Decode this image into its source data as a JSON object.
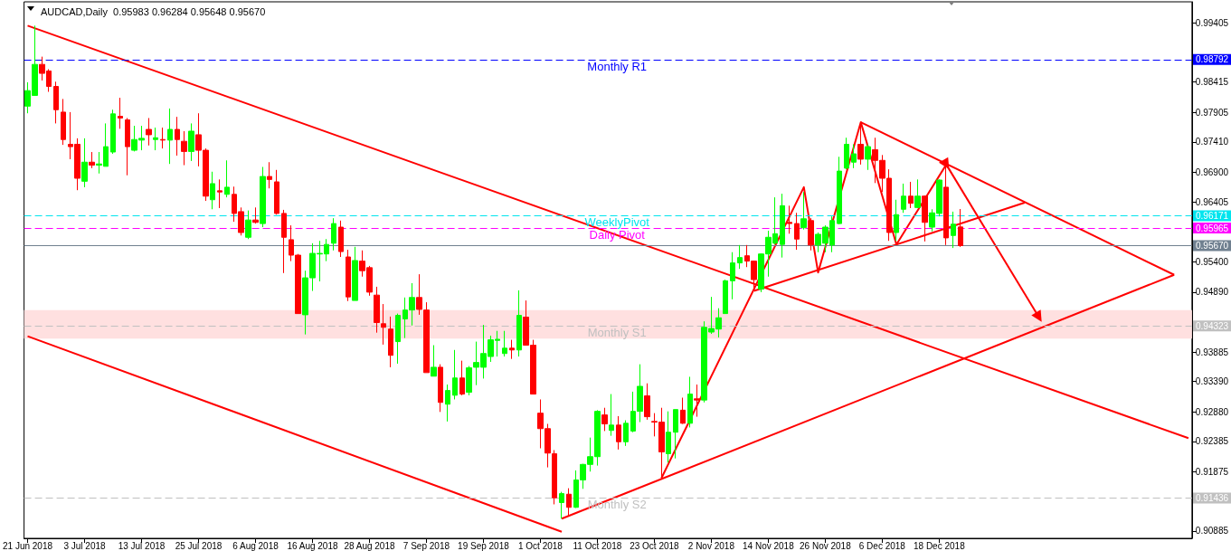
{
  "chart_data": {
    "type": "candlestick",
    "title": "AUDCAD,Daily  0.95983 0.96284 0.95648 0.95670",
    "categories": [
      "21 Jun 2018",
      null,
      null,
      null,
      null,
      null,
      null,
      null,
      "3 Jul 2018",
      null,
      null,
      null,
      null,
      null,
      null,
      null,
      "13 Jul 2018",
      null,
      null,
      null,
      null,
      null,
      null,
      null,
      "25 Jul 2018",
      null,
      null,
      null,
      null,
      null,
      null,
      null,
      "6 Aug 2018",
      null,
      null,
      null,
      null,
      null,
      null,
      null,
      "16 Aug 2018",
      null,
      null,
      null,
      null,
      null,
      null,
      null,
      "28 Aug 2018",
      null,
      null,
      null,
      null,
      null,
      null,
      null,
      "7 Sep 2018",
      null,
      null,
      null,
      null,
      null,
      null,
      null,
      "19 Sep 2018",
      null,
      null,
      null,
      null,
      null,
      null,
      null,
      "1 Oct 2018",
      null,
      null,
      null,
      null,
      null,
      null,
      null,
      "11 Oct 2018",
      null,
      null,
      null,
      null,
      null,
      null,
      null,
      "23 Oct 2018",
      null,
      null,
      null,
      null,
      null,
      null,
      null,
      "2 Nov 2018",
      null,
      null,
      null,
      null,
      null,
      null,
      null,
      "14 Nov 2018",
      null,
      null,
      null,
      null,
      null,
      null,
      null,
      "26 Nov 2018",
      null,
      null,
      null,
      null,
      null,
      null,
      null,
      "6 Dec 2018",
      null,
      null,
      null,
      null,
      null,
      null,
      null,
      "18 Dec 2018",
      null,
      null,
      null,
      null,
      null,
      null,
      null,
      null,
      null,
      null,
      null,
      null,
      null,
      null,
      null,
      null,
      null,
      null,
      null,
      null,
      null,
      null,
      null,
      null,
      null,
      null,
      null,
      null,
      null,
      null,
      null,
      null,
      null,
      null,
      null
    ],
    "ohlc": [
      [
        0.9801,
        0.9841,
        0.9789,
        0.9827
      ],
      [
        0.9819,
        0.9936,
        0.9819,
        0.9871
      ],
      [
        0.9871,
        0.9884,
        0.9844,
        0.9856
      ],
      [
        0.986,
        0.9863,
        0.9825,
        0.9834
      ],
      [
        0.9834,
        0.9842,
        0.9772,
        0.9795
      ],
      [
        0.9791,
        0.9813,
        0.9736,
        0.9745
      ],
      [
        0.9737,
        0.9791,
        0.9712,
        0.9733
      ],
      [
        0.9737,
        0.9747,
        0.966,
        0.968
      ],
      [
        0.9675,
        0.9747,
        0.9665,
        0.9707
      ],
      [
        0.9707,
        0.9724,
        0.9697,
        0.9702
      ],
      [
        0.9702,
        0.9724,
        0.9688,
        0.9704
      ],
      [
        0.97,
        0.9772,
        0.97,
        0.9733
      ],
      [
        0.9724,
        0.9795,
        0.9721,
        0.9788
      ],
      [
        0.9784,
        0.9815,
        0.9763,
        0.9781
      ],
      [
        0.9778,
        0.9781,
        0.9685,
        0.9733
      ],
      [
        0.9727,
        0.9768,
        0.9725,
        0.9745
      ],
      [
        0.9744,
        0.9768,
        0.9727,
        0.9747
      ],
      [
        0.9762,
        0.9781,
        0.9735,
        0.9753
      ],
      [
        0.9745,
        0.9765,
        0.9727,
        0.9748
      ],
      [
        0.9745,
        0.9765,
        0.973,
        0.9744
      ],
      [
        0.9744,
        0.9797,
        0.9704,
        0.9762
      ],
      [
        0.9762,
        0.9783,
        0.9718,
        0.9745
      ],
      [
        0.9742,
        0.9759,
        0.9702,
        0.9725
      ],
      [
        0.9725,
        0.9772,
        0.9709,
        0.9759
      ],
      [
        0.9753,
        0.9789,
        0.97,
        0.9727
      ],
      [
        0.9727,
        0.973,
        0.9642,
        0.965
      ],
      [
        0.9644,
        0.9691,
        0.9628,
        0.9671
      ],
      [
        0.9659,
        0.9678,
        0.963,
        0.9657
      ],
      [
        0.9653,
        0.971,
        0.9648,
        0.9665
      ],
      [
        0.9653,
        0.9666,
        0.9607,
        0.9621
      ],
      [
        0.9624,
        0.9631,
        0.9584,
        0.9589
      ],
      [
        0.9581,
        0.9626,
        0.9578,
        0.961
      ],
      [
        0.961,
        0.9631,
        0.9604,
        0.9606
      ],
      [
        0.9604,
        0.9699,
        0.9598,
        0.9683
      ],
      [
        0.9683,
        0.9707,
        0.9663,
        0.9678
      ],
      [
        0.9674,
        0.9694,
        0.9619,
        0.9621
      ],
      [
        0.9621,
        0.9627,
        0.9521,
        0.9581
      ],
      [
        0.9577,
        0.9601,
        0.9541,
        0.9551
      ],
      [
        0.9551,
        0.9553,
        0.9453,
        0.9453
      ],
      [
        0.9451,
        0.9525,
        0.9418,
        0.9513
      ],
      [
        0.9513,
        0.9571,
        0.9491,
        0.9554
      ],
      [
        0.9553,
        0.9575,
        0.9507,
        0.9554
      ],
      [
        0.9553,
        0.9578,
        0.9541,
        0.9569
      ],
      [
        0.9571,
        0.9613,
        0.9559,
        0.9604
      ],
      [
        0.9598,
        0.9609,
        0.9548,
        0.9557
      ],
      [
        0.9548,
        0.956,
        0.9474,
        0.9481
      ],
      [
        0.9475,
        0.9565,
        0.9475,
        0.9542
      ],
      [
        0.9541,
        0.9559,
        0.9515,
        0.9525
      ],
      [
        0.953,
        0.9533,
        0.9483,
        0.9489
      ],
      [
        0.9484,
        0.9498,
        0.9421,
        0.9438
      ],
      [
        0.9436,
        0.9469,
        0.9401,
        0.943
      ],
      [
        0.9427,
        0.9448,
        0.9363,
        0.9383
      ],
      [
        0.9406,
        0.9453,
        0.9369,
        0.945
      ],
      [
        0.9444,
        0.948,
        0.9412,
        0.9459
      ],
      [
        0.9459,
        0.9504,
        0.9433,
        0.948
      ],
      [
        0.948,
        0.9519,
        0.9451,
        0.946
      ],
      [
        0.9459,
        0.9472,
        0.9354,
        0.9354
      ],
      [
        0.9348,
        0.94,
        0.9348,
        0.9363
      ],
      [
        0.9363,
        0.9368,
        0.9288,
        0.9304
      ],
      [
        0.9301,
        0.9334,
        0.9272,
        0.9324
      ],
      [
        0.9316,
        0.9392,
        0.9309,
        0.9345
      ],
      [
        0.9345,
        0.9374,
        0.9316,
        0.9318
      ],
      [
        0.9321,
        0.9365,
        0.9316,
        0.9362
      ],
      [
        0.9363,
        0.9406,
        0.9333,
        0.9371
      ],
      [
        0.9363,
        0.9434,
        0.9344,
        0.9386
      ],
      [
        0.9381,
        0.9416,
        0.9372,
        0.9409
      ],
      [
        0.9408,
        0.9424,
        0.9381,
        0.941
      ],
      [
        0.9386,
        0.9424,
        0.9381,
        0.9395
      ],
      [
        0.9395,
        0.9409,
        0.9377,
        0.9392
      ],
      [
        0.9392,
        0.9492,
        0.9381,
        0.945
      ],
      [
        0.9447,
        0.9475,
        0.94,
        0.94
      ],
      [
        0.94,
        0.9409,
        0.9318,
        0.9318
      ],
      [
        0.9286,
        0.9309,
        0.9227,
        0.926
      ],
      [
        0.926,
        0.9268,
        0.9195,
        0.9219
      ],
      [
        0.9218,
        0.9224,
        0.9133,
        0.9144
      ],
      [
        0.9136,
        0.9154,
        0.9109,
        0.9151
      ],
      [
        0.915,
        0.916,
        0.9113,
        0.9128
      ],
      [
        0.9128,
        0.919,
        0.9127,
        0.9174
      ],
      [
        0.9174,
        0.9201,
        0.9159,
        0.92
      ],
      [
        0.92,
        0.9245,
        0.9188,
        0.9213
      ],
      [
        0.9213,
        0.9291,
        0.9198,
        0.9289
      ],
      [
        0.9283,
        0.9295,
        0.9256,
        0.9268
      ],
      [
        0.9257,
        0.9318,
        0.9248,
        0.9266
      ],
      [
        0.9266,
        0.9281,
        0.9225,
        0.9238
      ],
      [
        0.9238,
        0.9274,
        0.9231,
        0.9269
      ],
      [
        0.9256,
        0.9322,
        0.9254,
        0.9289
      ],
      [
        0.9289,
        0.9368,
        0.9271,
        0.9331
      ],
      [
        0.9315,
        0.9336,
        0.9275,
        0.928
      ],
      [
        0.9272,
        0.9286,
        0.9247,
        0.9271
      ],
      [
        0.9271,
        0.9295,
        0.9177,
        0.9221
      ],
      [
        0.9218,
        0.9289,
        0.9203,
        0.9254
      ],
      [
        0.9254,
        0.9292,
        0.921,
        0.9292
      ],
      [
        0.9291,
        0.9312,
        0.9268,
        0.9269
      ],
      [
        0.9269,
        0.9347,
        0.9262,
        0.9318
      ],
      [
        0.931,
        0.9334,
        0.928,
        0.9308
      ],
      [
        0.9308,
        0.944,
        0.9304,
        0.943
      ],
      [
        0.9422,
        0.9481,
        0.9419,
        0.9428
      ],
      [
        0.9427,
        0.9462,
        0.9413,
        0.9446
      ],
      [
        0.9453,
        0.951,
        0.9453,
        0.9508
      ],
      [
        0.9508,
        0.9556,
        0.9477,
        0.9538
      ],
      [
        0.9538,
        0.9568,
        0.9528,
        0.9547
      ],
      [
        0.955,
        0.9568,
        0.9531,
        0.9541
      ],
      [
        0.9541,
        0.9542,
        0.9494,
        0.951
      ],
      [
        0.9494,
        0.9554,
        0.9489,
        0.9553
      ],
      [
        0.9553,
        0.9592,
        0.9515,
        0.9581
      ],
      [
        0.9571,
        0.9648,
        0.9569,
        0.9587
      ],
      [
        0.9569,
        0.9654,
        0.9547,
        0.9634
      ],
      [
        0.9606,
        0.9634,
        0.9587,
        0.9604
      ],
      [
        0.9604,
        0.9622,
        0.956,
        0.9578
      ],
      [
        0.9597,
        0.9657,
        0.9594,
        0.9612
      ],
      [
        0.9609,
        0.9613,
        0.9559,
        0.9568
      ],
      [
        0.9568,
        0.9589,
        0.9556,
        0.9586
      ],
      [
        0.9571,
        0.9601,
        0.9556,
        0.9598
      ],
      [
        0.9568,
        0.9616,
        0.9556,
        0.9609
      ],
      [
        0.9604,
        0.9716,
        0.9603,
        0.9692
      ],
      [
        0.9697,
        0.9748,
        0.9695,
        0.9737
      ],
      [
        0.9707,
        0.9737,
        0.9697,
        0.9721
      ],
      [
        0.9737,
        0.9774,
        0.9703,
        0.9712
      ],
      [
        0.9712,
        0.9737,
        0.9694,
        0.9733
      ],
      [
        0.9728,
        0.9748,
        0.9672,
        0.971
      ],
      [
        0.971,
        0.9719,
        0.9657,
        0.968
      ],
      [
        0.968,
        0.9695,
        0.9575,
        0.9589
      ],
      [
        0.9589,
        0.9644,
        0.9575,
        0.9619
      ],
      [
        0.9628,
        0.9671,
        0.9622,
        0.965
      ],
      [
        0.965,
        0.9674,
        0.963,
        0.9638
      ],
      [
        0.9631,
        0.9678,
        0.963,
        0.965
      ],
      [
        0.965,
        0.9651,
        0.9574,
        0.9606
      ],
      [
        0.9598,
        0.9628,
        0.9591,
        0.9622
      ],
      [
        0.9621,
        0.9678,
        0.9616,
        0.9677
      ],
      [
        0.9665,
        0.9703,
        0.9568,
        0.958
      ],
      [
        0.9584,
        0.9624,
        0.9563,
        0.9603
      ],
      [
        0.95983,
        0.96284,
        0.95648,
        0.9567
      ],
      null,
      null,
      null,
      null,
      null,
      null,
      null,
      null,
      null,
      null,
      null,
      null,
      null,
      null,
      null,
      null,
      null,
      null,
      null,
      null,
      null,
      null,
      null,
      null,
      null,
      null,
      null,
      null,
      null,
      null,
      null,
      null
    ],
    "colors": [
      "#00ff00",
      "#00ff00",
      "#ff0000",
      "#ff0000",
      "#ff0000",
      "#ff0000",
      "#ff0000",
      "#ff0000",
      "#00ff00",
      "#ff0000",
      "#00ff00",
      "#00ff00",
      "#00ff00",
      "#ff0000",
      "#ff0000",
      "#00ff00",
      "#00ff00",
      "#ff0000",
      "#00ff00",
      "#ff0000",
      "#00ff00",
      "#ff0000",
      "#ff0000",
      "#00ff00",
      "#ff0000",
      "#ff0000",
      "#00ff00",
      "#ff0000",
      "#00ff00",
      "#ff0000",
      "#ff0000",
      "#00ff00",
      "#ff0000",
      "#00ff00",
      "#ff0000",
      "#ff0000",
      "#ff0000",
      "#ff0000",
      "#ff0000",
      "#00ff00",
      "#00ff00",
      "#00ff00",
      "#00ff00",
      "#00ff00",
      "#ff0000",
      "#ff0000",
      "#00ff00",
      "#ff0000",
      "#ff0000",
      "#ff0000",
      "#ff0000",
      "#ff0000",
      "#00ff00",
      "#00ff00",
      "#00ff00",
      "#ff0000",
      "#ff0000",
      "#00ff00",
      "#ff0000",
      "#00ff00",
      "#00ff00",
      "#ff0000",
      "#00ff00",
      "#00ff00",
      "#00ff00",
      "#00ff00",
      "#00ff00",
      "#00ff00",
      "#ff0000",
      "#00ff00",
      "#ff0000",
      "#ff0000",
      "#ff0000",
      "#ff0000",
      "#ff0000",
      "#00ff00",
      "#ff0000",
      "#00ff00",
      "#00ff00",
      "#00ff00",
      "#00ff00",
      "#ff0000",
      "#00ff00",
      "#ff0000",
      "#00ff00",
      "#00ff00",
      "#00ff00",
      "#ff0000",
      "#ff0000",
      "#ff0000",
      "#00ff00",
      "#00ff00",
      "#ff0000",
      "#00ff00",
      "#ff0000",
      "#00ff00",
      "#00ff00",
      "#00ff00",
      "#00ff00",
      "#00ff00",
      "#00ff00",
      "#ff0000",
      "#ff0000",
      "#00ff00",
      "#00ff00",
      "#00ff00",
      "#00ff00",
      "#ff0000",
      "#ff0000",
      "#00ff00",
      "#ff0000",
      "#00ff00",
      "#00ff00",
      "#00ff00",
      "#00ff00",
      "#00ff00",
      "#00ff00",
      "#ff0000",
      "#00ff00",
      "#ff0000",
      "#ff0000",
      "#ff0000",
      "#00ff00",
      "#00ff00",
      "#ff0000",
      "#00ff00",
      "#ff0000",
      "#00ff00",
      "#00ff00",
      "#ff0000",
      "#00ff00",
      "#ff0000",
      null,
      null,
      null,
      null,
      null,
      null,
      null,
      null,
      null,
      null,
      null,
      null,
      null,
      null,
      null,
      null,
      null,
      null,
      null,
      null,
      null,
      null,
      null,
      null,
      null,
      null,
      null,
      null,
      null,
      null,
      null,
      null
    ],
    "series": [
      {
        "type": "line",
        "color": "#ff0000",
        "values": [
          0.9936,
          null,
          null,
          null,
          null,
          null,
          null,
          null,
          null,
          null,
          null,
          null,
          null,
          null,
          null,
          null,
          null,
          null,
          null,
          null,
          null,
          null,
          null,
          null,
          null,
          null,
          null,
          null,
          null,
          null,
          null,
          null,
          null,
          null,
          null,
          null,
          null,
          null,
          null,
          null,
          null,
          null,
          null,
          null,
          null,
          null,
          null,
          null,
          null,
          null,
          null,
          null,
          null,
          null,
          null,
          null,
          null,
          null,
          null,
          null,
          null,
          null,
          null,
          null,
          null,
          null,
          null,
          null,
          null,
          null,
          null,
          null,
          null,
          null,
          null,
          null,
          null,
          null,
          null,
          null,
          null,
          null,
          null,
          null,
          null,
          null,
          null,
          null,
          null,
          null,
          null,
          null,
          null,
          null,
          null,
          null,
          null,
          null,
          null,
          null,
          null,
          null,
          null,
          null,
          null,
          null,
          null,
          null,
          null,
          null,
          null,
          null,
          null,
          null,
          null,
          null,
          null,
          null,
          null,
          null,
          null,
          null,
          null,
          null,
          null,
          null,
          null,
          null,
          null,
          null,
          null,
          null,
          null,
          null,
          null,
          null,
          null,
          null,
          null,
          null,
          null,
          null,
          null,
          null,
          null,
          null,
          null,
          null,
          null,
          null,
          null,
          null,
          null,
          null,
          null,
          null,
          null,
          null,
          null,
          null,
          null,
          null,
          null,
          0.9244
        ]
      },
      {
        "type": "line",
        "color": "#ff0000",
        "values": [
          0.9415,
          null,
          null,
          null,
          null,
          null,
          null,
          null,
          null,
          null,
          null,
          null,
          null,
          null,
          null,
          null,
          null,
          null,
          null,
          null,
          null,
          null,
          null,
          null,
          null,
          null,
          null,
          null,
          null,
          null,
          null,
          null,
          null,
          null,
          null,
          null,
          null,
          null,
          null,
          null,
          null,
          null,
          null,
          null,
          null,
          null,
          null,
          null,
          null,
          null,
          null,
          null,
          null,
          null,
          null,
          null,
          null,
          null,
          null,
          null,
          null,
          null,
          null,
          null,
          null,
          null,
          null,
          null,
          null,
          null,
          null,
          null,
          null,
          null,
          null,
          0.9087,
          null,
          null,
          null,
          null,
          null,
          null,
          null,
          null,
          null,
          null,
          null,
          null,
          null,
          null,
          null,
          null,
          null,
          null,
          null,
          null,
          null,
          null,
          null,
          null,
          null,
          null,
          null,
          null,
          null,
          null,
          null,
          null,
          null,
          null,
          null,
          null,
          null,
          null,
          null,
          null,
          null,
          null,
          null,
          null,
          null,
          null,
          null,
          null,
          null,
          null,
          null,
          null,
          null,
          null,
          null,
          null,
          null,
          null,
          null,
          null,
          null,
          null,
          null,
          null,
          null,
          null,
          null,
          null,
          null,
          null,
          null,
          null,
          null,
          null,
          null,
          null,
          null,
          null,
          null,
          null,
          null,
          null,
          null,
          null,
          null,
          null,
          null,
          null
        ]
      },
      {
        "type": "line",
        "color": "#ff0000",
        "values": [
          null,
          null,
          null,
          null,
          null,
          null,
          null,
          null,
          null,
          null,
          null,
          null,
          null,
          null,
          null,
          null,
          null,
          null,
          null,
          null,
          null,
          null,
          null,
          null,
          null,
          null,
          null,
          null,
          null,
          null,
          null,
          null,
          null,
          null,
          null,
          null,
          null,
          null,
          null,
          null,
          null,
          null,
          null,
          null,
          null,
          null,
          null,
          null,
          null,
          null,
          null,
          null,
          null,
          null,
          null,
          null,
          null,
          null,
          null,
          null,
          null,
          null,
          null,
          null,
          null,
          null,
          null,
          null,
          null,
          null,
          null,
          null,
          null,
          null,
          null,
          0.9109,
          null,
          null,
          null,
          null,
          null,
          null,
          null,
          null,
          null,
          null,
          null,
          null,
          null,
          null,
          null,
          null,
          null,
          null,
          null,
          null,
          null,
          null,
          null,
          null,
          null,
          null,
          null,
          null,
          null,
          null,
          null,
          null,
          null,
          null,
          null,
          null,
          null,
          null,
          null,
          null,
          null,
          null,
          null,
          null,
          null,
          null,
          null,
          null,
          null,
          null,
          null,
          null,
          null,
          null,
          null,
          null,
          null,
          null,
          null,
          null,
          null,
          null,
          null,
          null,
          null,
          null,
          null,
          null,
          null,
          null,
          null,
          null,
          null,
          null,
          null,
          null,
          null,
          null,
          null,
          null,
          null,
          null,
          null,
          null,
          null,
          0.9518,
          null,
          null
        ]
      },
      {
        "type": "line",
        "color": "#ff0000",
        "values": [
          null,
          null,
          null,
          null,
          null,
          null,
          null,
          null,
          null,
          null,
          null,
          null,
          null,
          null,
          null,
          null,
          null,
          null,
          null,
          null,
          null,
          null,
          null,
          null,
          null,
          null,
          null,
          null,
          null,
          null,
          null,
          null,
          null,
          null,
          null,
          null,
          null,
          null,
          null,
          null,
          null,
          null,
          null,
          null,
          null,
          null,
          null,
          null,
          null,
          null,
          null,
          null,
          null,
          null,
          null,
          null,
          null,
          null,
          null,
          null,
          null,
          null,
          null,
          null,
          null,
          null,
          null,
          null,
          null,
          null,
          null,
          null,
          null,
          null,
          null,
          null,
          null,
          null,
          null,
          null,
          null,
          null,
          null,
          null,
          null,
          null,
          null,
          null,
          null,
          null,
          null,
          null,
          null,
          null,
          null,
          null,
          null,
          null,
          null,
          null,
          null,
          null,
          null,
          null,
          null,
          null,
          null,
          null,
          null,
          null,
          null,
          null,
          null,
          null,
          null,
          null,
          null,
          0.9774,
          null,
          null,
          null,
          null,
          null,
          null,
          null,
          null,
          null,
          null,
          null,
          null,
          null,
          null,
          null,
          null,
          null,
          null,
          null,
          null,
          null,
          null,
          null,
          null,
          null,
          null,
          null,
          null,
          null,
          null,
          null,
          null,
          null,
          null,
          null,
          null,
          null,
          null,
          null,
          null,
          null,
          null,
          null,
          0.9518,
          null,
          null
        ]
      },
      {
        "type": "line",
        "color": "#ff0000",
        "values": [
          null,
          null,
          null,
          null,
          null,
          null,
          null,
          null,
          null,
          null,
          null,
          null,
          null,
          null,
          null,
          null,
          null,
          null,
          null,
          null,
          null,
          null,
          null,
          null,
          null,
          null,
          null,
          null,
          null,
          null,
          null,
          null,
          null,
          null,
          null,
          null,
          null,
          null,
          null,
          null,
          null,
          null,
          null,
          null,
          null,
          null,
          null,
          null,
          null,
          null,
          null,
          null,
          null,
          null,
          null,
          null,
          null,
          null,
          null,
          null,
          null,
          null,
          null,
          null,
          null,
          null,
          null,
          null,
          null,
          null,
          null,
          null,
          null,
          null,
          null,
          null,
          null,
          null,
          null,
          null,
          null,
          null,
          null,
          null,
          null,
          null,
          null,
          null,
          null,
          0.9177,
          null,
          null,
          null,
          null,
          null,
          null,
          null,
          null,
          null,
          null,
          null,
          null,
          null,
          null,
          null,
          null,
          null,
          null,
          null,
          0.9665,
          null,
          0.9522,
          null,
          null,
          null,
          null,
          null,
          0.9774,
          null,
          null,
          null,
          null,
          0.9569,
          null,
          null,
          null,
          null,
          null,
          null,
          0.9703,
          null,
          null,
          null,
          null,
          null,
          null,
          null,
          null,
          null,
          null,
          null,
          null,
          null,
          null,
          null,
          null,
          null,
          null,
          null,
          null,
          null,
          null,
          null,
          null,
          null,
          null,
          null,
          null,
          null,
          null,
          null,
          null,
          null,
          null
        ]
      },
      {
        "type": "line",
        "color": "#ff0000",
        "values": [
          null,
          null,
          null,
          null,
          null,
          null,
          null,
          null,
          null,
          null,
          null,
          null,
          null,
          null,
          null,
          null,
          null,
          null,
          null,
          null,
          null,
          null,
          null,
          null,
          null,
          null,
          null,
          null,
          null,
          null,
          null,
          null,
          null,
          null,
          null,
          null,
          null,
          null,
          null,
          null,
          null,
          null,
          null,
          null,
          null,
          null,
          null,
          null,
          null,
          null,
          null,
          null,
          null,
          null,
          null,
          null,
          null,
          null,
          null,
          null,
          null,
          null,
          null,
          null,
          null,
          null,
          null,
          null,
          null,
          null,
          null,
          null,
          null,
          null,
          null,
          null,
          null,
          null,
          null,
          null,
          null,
          null,
          null,
          null,
          null,
          null,
          null,
          null,
          null,
          null,
          null,
          null,
          null,
          null,
          null,
          null,
          null,
          null,
          null,
          null,
          null,
          null,
          0.9491,
          null,
          null,
          null,
          null,
          null,
          null,
          null,
          null,
          null,
          null,
          null,
          null,
          null,
          null,
          null,
          null,
          null,
          null,
          null,
          null,
          null,
          null,
          null,
          null,
          null,
          null,
          null,
          null,
          null,
          null,
          null,
          null,
          null,
          null,
          null,
          null,
          null,
          0.9639,
          null,
          null,
          null,
          null,
          null,
          null,
          null,
          null,
          null,
          null,
          null,
          null,
          null,
          null,
          null,
          null,
          null,
          null,
          null,
          null,
          null,
          null,
          null
        ]
      },
      {
        "type": "line",
        "color": "#ff0000",
        "marker": "triangle",
        "values": [
          null,
          null,
          null,
          null,
          null,
          null,
          null,
          null,
          null,
          null,
          null,
          null,
          null,
          null,
          null,
          null,
          null,
          null,
          null,
          null,
          null,
          null,
          null,
          null,
          null,
          null,
          null,
          null,
          null,
          null,
          null,
          null,
          null,
          null,
          null,
          null,
          null,
          null,
          null,
          null,
          null,
          null,
          null,
          null,
          null,
          null,
          null,
          null,
          null,
          null,
          null,
          null,
          null,
          null,
          null,
          null,
          null,
          null,
          null,
          null,
          null,
          null,
          null,
          null,
          null,
          null,
          null,
          null,
          null,
          null,
          null,
          null,
          null,
          null,
          null,
          null,
          null,
          null,
          null,
          null,
          null,
          null,
          null,
          null,
          null,
          null,
          null,
          null,
          null,
          null,
          null,
          null,
          null,
          null,
          null,
          null,
          null,
          null,
          null,
          null,
          null,
          null,
          null,
          null,
          null,
          null,
          null,
          null,
          null,
          null,
          null,
          null,
          null,
          null,
          null,
          null,
          null,
          null,
          null,
          null,
          null,
          null,
          null,
          null,
          null,
          null,
          null,
          null,
          null,
          0.9703,
          null,
          null,
          null,
          null,
          null,
          null,
          null,
          null,
          null,
          null,
          null,
          null,
          0.9447,
          null,
          null,
          null,
          null,
          null,
          null,
          null,
          null,
          null,
          null,
          null,
          null,
          null,
          null,
          null,
          null,
          null,
          null,
          null,
          null,
          null
        ]
      }
    ],
    "ylim": [
      0.9076,
      0.9976
    ],
    "yticks": [
      {
        "value": 0.90885,
        "label": "0.90885"
      },
      {
        "value": 0.91875,
        "label": "0.91875"
      },
      {
        "value": 0.92385,
        "label": "0.92385"
      },
      {
        "value": 0.9288,
        "label": "0.92880"
      },
      {
        "value": 0.9339,
        "label": "0.93390"
      },
      {
        "value": 0.93885,
        "label": "0.93885"
      },
      {
        "value": 0.9489,
        "label": "0.94890"
      },
      {
        "value": 0.954,
        "label": "0.95400"
      },
      {
        "value": 0.96405,
        "label": "0.96405"
      },
      {
        "value": 0.969,
        "label": "0.96900"
      },
      {
        "value": 0.9741,
        "label": "0.97410"
      },
      {
        "value": 0.97905,
        "label": "0.97905"
      },
      {
        "value": 0.98415,
        "label": "0.98415"
      },
      {
        "value": 0.99405,
        "label": "0.99405"
      }
    ],
    "ref_lines": [
      {
        "axis": "y",
        "value": 0.98792,
        "label": "Monthly R1",
        "color": "#0000ff",
        "line_style": "dashed"
      },
      {
        "axis": "y",
        "value": 0.96171,
        "label": "WeeklyPivot",
        "color": "#00e5ee",
        "line_style": "dashed"
      },
      {
        "axis": "y",
        "value": 0.95965,
        "label": "Daily Pivot",
        "color": "#ff00ff",
        "line_style": "dashed"
      },
      {
        "axis": "y",
        "value": 0.9567,
        "label": null,
        "color": "#708090",
        "line_style": "solid"
      },
      {
        "axis": "y",
        "value": 0.94323,
        "label": "Monthly S1",
        "color": "#c0c0c0",
        "line_style": "dashed"
      },
      {
        "axis": "y",
        "value": 0.91436,
        "label": "Monthly S2",
        "color": "#c0c0c0",
        "line_style": "dashed"
      }
    ],
    "bands": [
      {
        "axis": "y",
        "from": 0.9411,
        "to": 0.9459,
        "color": "#ffe0e0"
      }
    ],
    "annotations": [
      "0.98792",
      "0.96171",
      "0.95965",
      "0.95670",
      "0.94323",
      "0.91436"
    ]
  }
}
